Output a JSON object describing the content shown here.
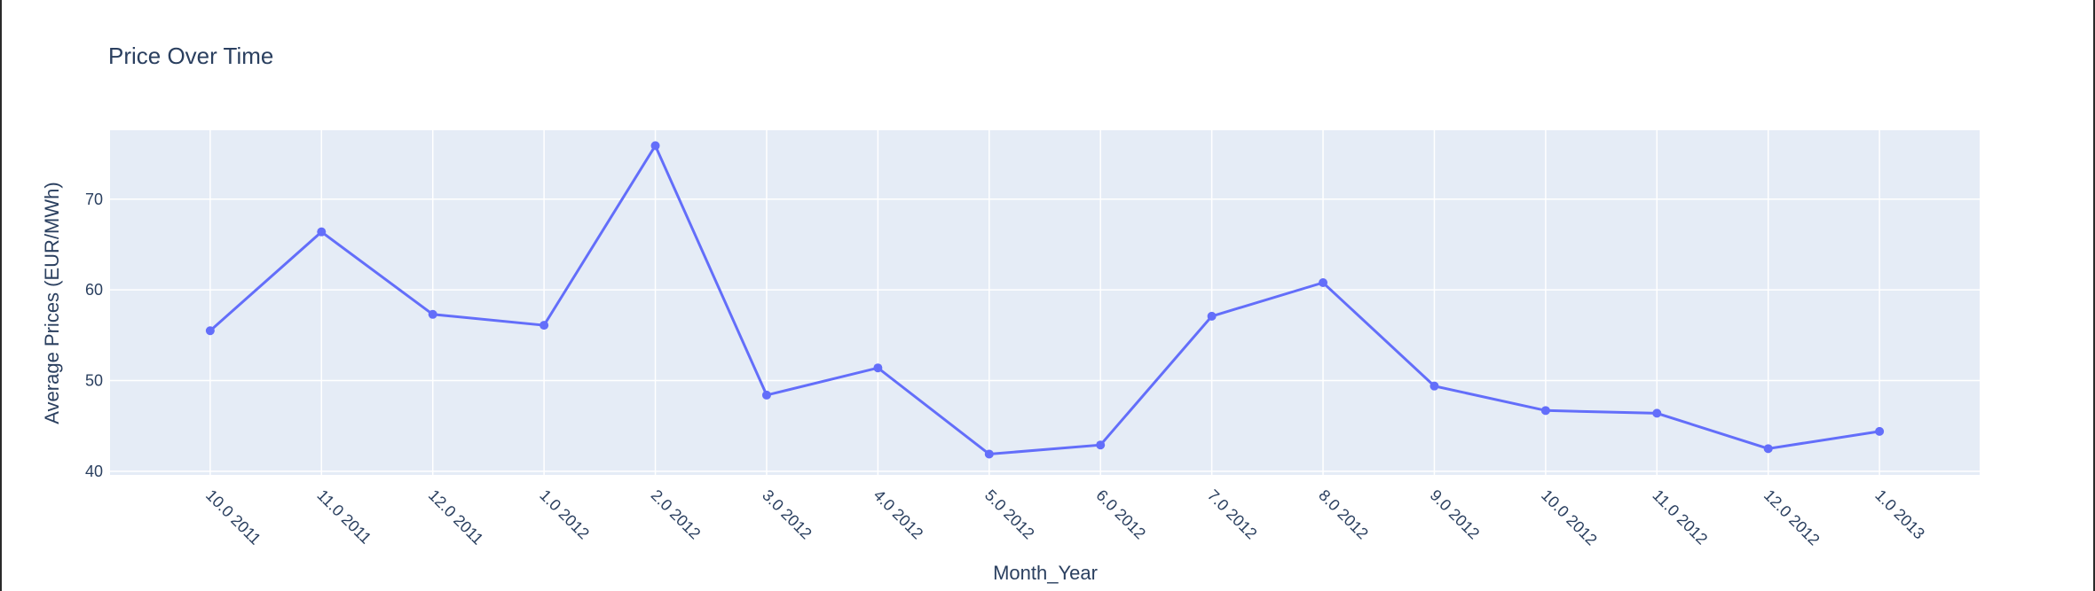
{
  "chart_data": {
    "type": "line",
    "title": "Price Over Time",
    "xlabel": "Month_Year",
    "ylabel": "Average Prices (EUR/MWh)",
    "categories": [
      "10.0 2011",
      "11.0 2011",
      "12.0 2011",
      "1.0 2012",
      "2.0 2012",
      "3.0 2012",
      "4.0 2012",
      "5.0 2012",
      "6.0 2012",
      "7.0 2012",
      "8.0 2012",
      "9.0 2012",
      "10.0 2012",
      "11.0 2012",
      "12.0 2012",
      "1.0 2013"
    ],
    "values": [
      55.5,
      66.4,
      57.3,
      56.1,
      75.9,
      48.4,
      51.4,
      41.9,
      42.9,
      57.1,
      60.8,
      49.4,
      46.7,
      46.4,
      42.5,
      44.4
    ],
    "yticks": [
      40,
      50,
      60,
      70
    ],
    "ylim": [
      39.6,
      77.6
    ],
    "grid": true,
    "colors": {
      "line": "#636efa",
      "plot_bg": "#e5ecf6",
      "grid": "#ffffff",
      "text": "#2a3f5f"
    }
  }
}
